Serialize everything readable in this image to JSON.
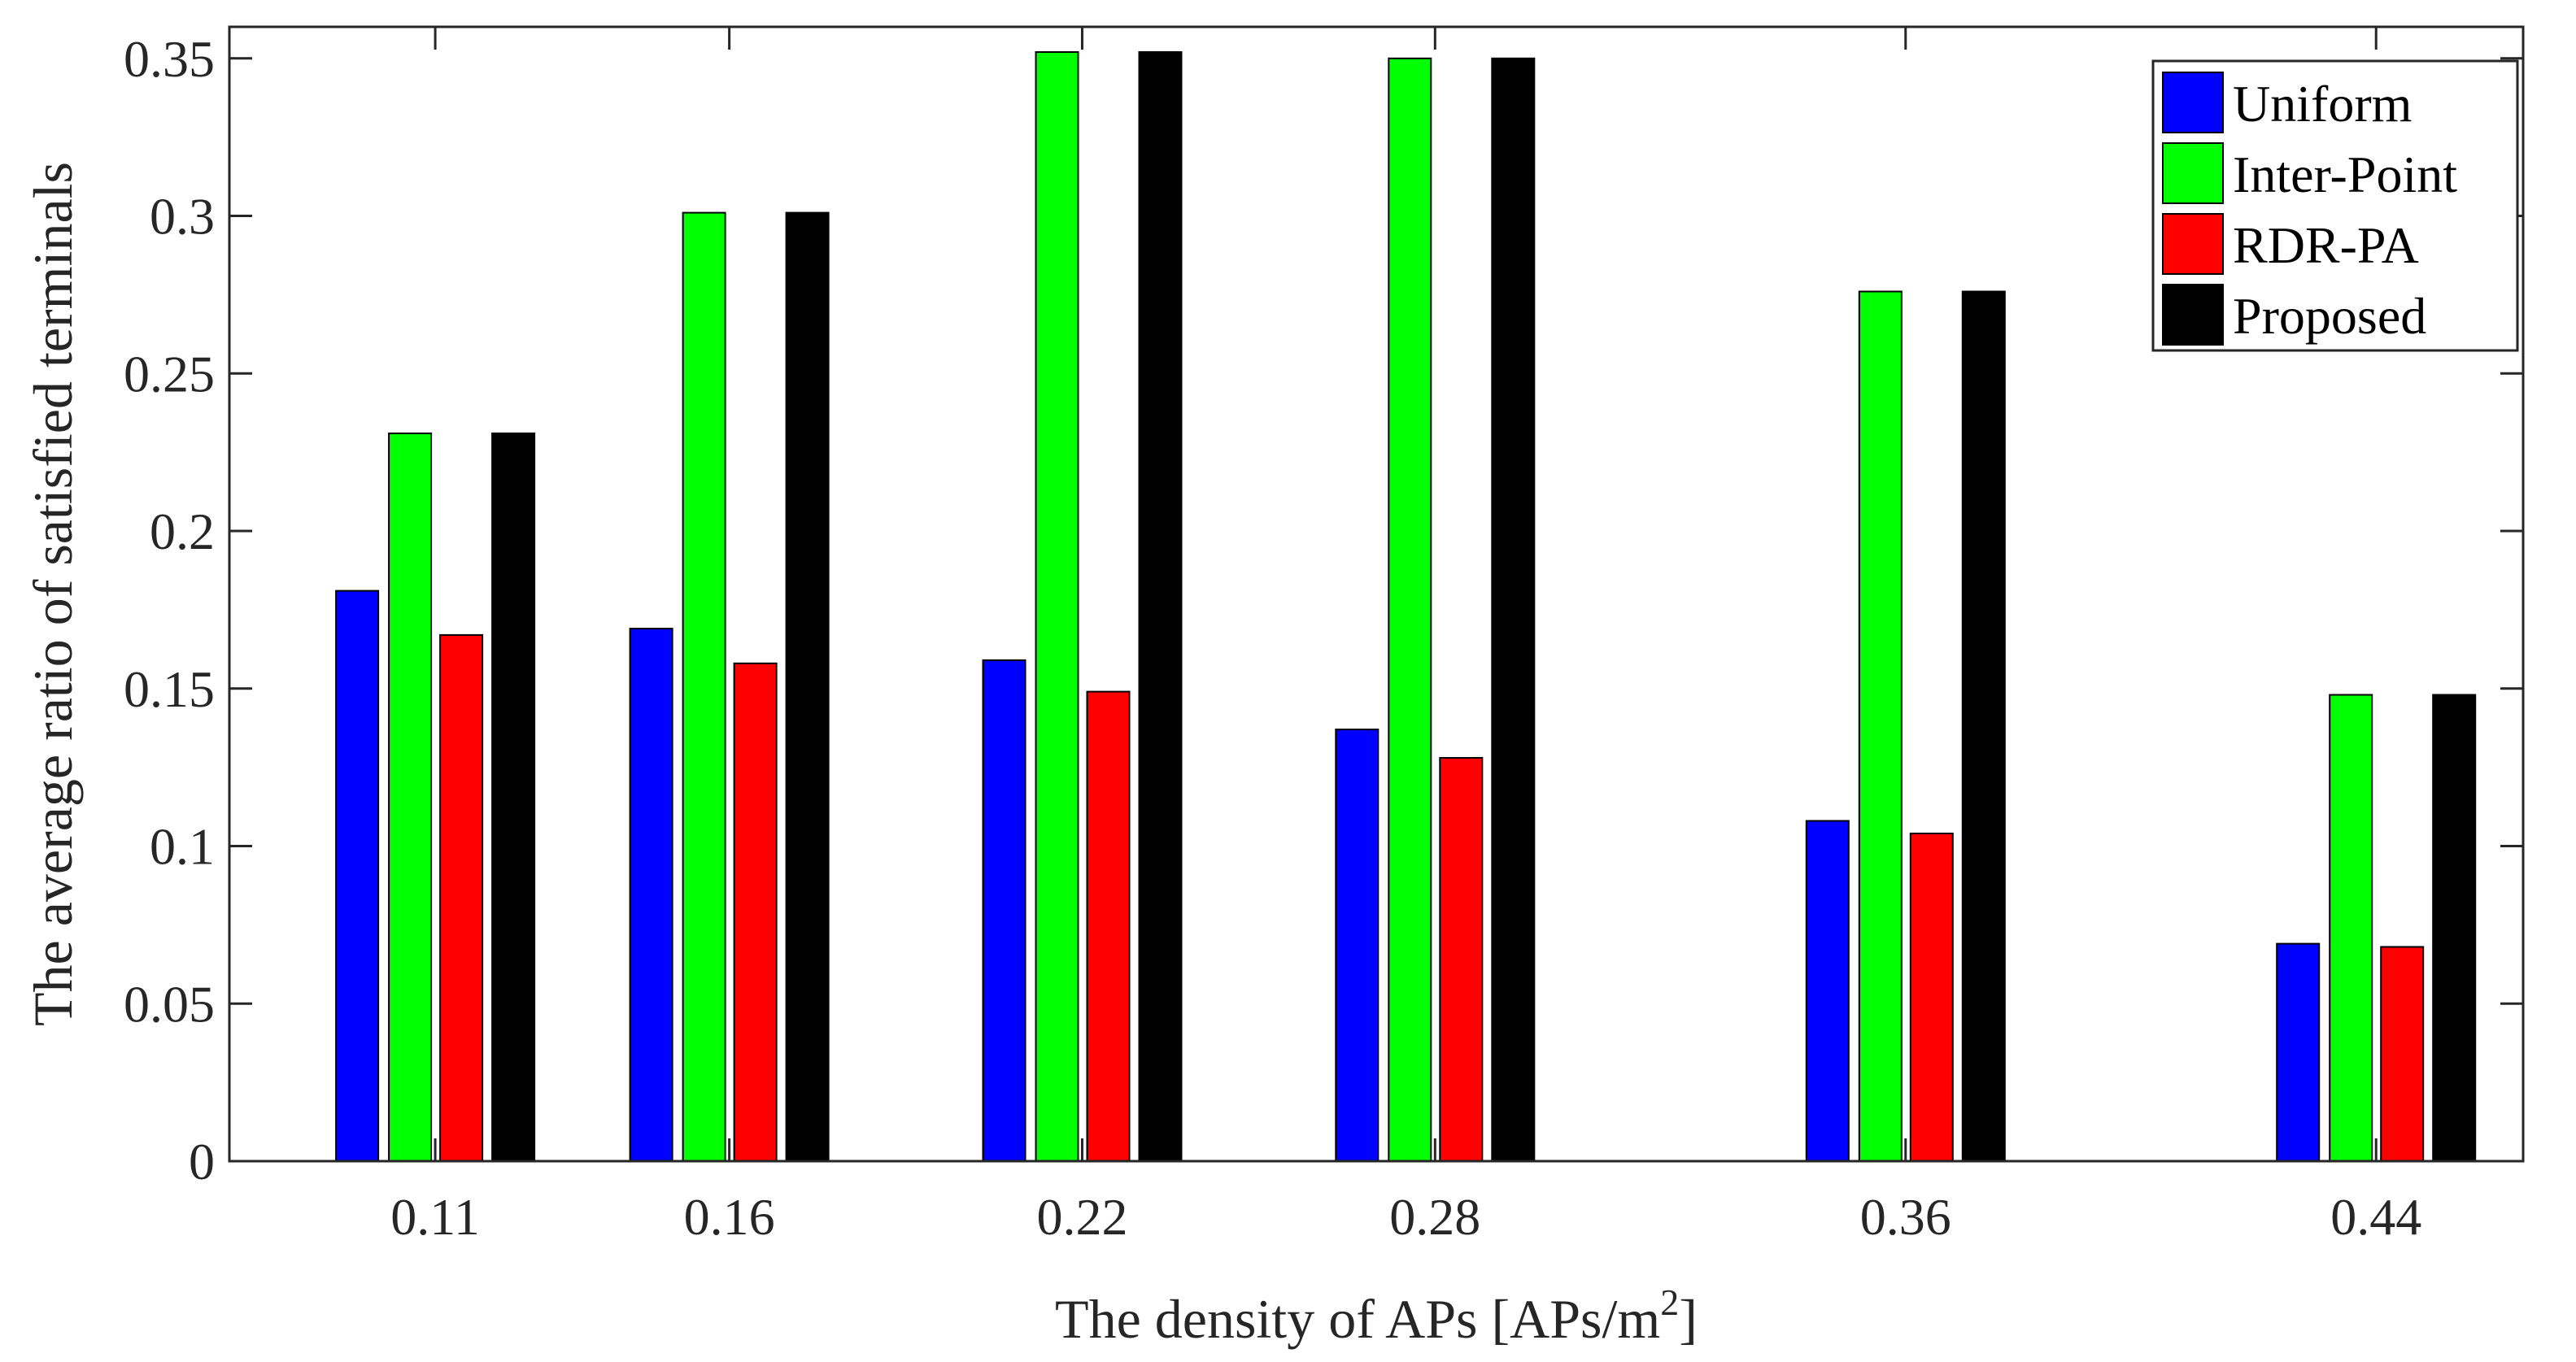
{
  "chart_data": {
    "type": "bar",
    "title": "",
    "xlabel": "The density of APs [APs/m",
    "xlabel_sup": "2",
    "xlabel_suffix": "]",
    "ylabel": "The average ratio of satisfied terminals",
    "categories": [
      "0.11",
      "0.16",
      "0.22",
      "0.28",
      "0.36",
      "0.44"
    ],
    "x": [
      0.11,
      0.16,
      0.22,
      0.28,
      0.36,
      0.44
    ],
    "xlim": [
      0.075,
      0.465
    ],
    "ylim": [
      0,
      0.36
    ],
    "yticks": [
      0,
      0.05,
      0.1,
      0.15,
      0.2,
      0.25,
      0.3,
      0.35
    ],
    "ytick_labels": [
      "0",
      "0.05",
      "0.1",
      "0.15",
      "0.2",
      "0.25",
      "0.3",
      "0.35"
    ],
    "grid": false,
    "legend_position": "top-right",
    "series": [
      {
        "name": "Uniform",
        "color": "#0000ff",
        "values": [
          0.181,
          0.169,
          0.159,
          0.137,
          0.108,
          0.069
        ]
      },
      {
        "name": "Inter-Point",
        "color": "#00ff00",
        "values": [
          0.231,
          0.301,
          0.352,
          0.35,
          0.276,
          0.148
        ]
      },
      {
        "name": "RDR-PA",
        "color": "#ff0000",
        "values": [
          0.167,
          0.158,
          0.149,
          0.128,
          0.104,
          0.068
        ]
      },
      {
        "name": "Proposed",
        "color": "#000000",
        "values": [
          0.231,
          0.301,
          0.352,
          0.35,
          0.276,
          0.148
        ]
      }
    ]
  }
}
